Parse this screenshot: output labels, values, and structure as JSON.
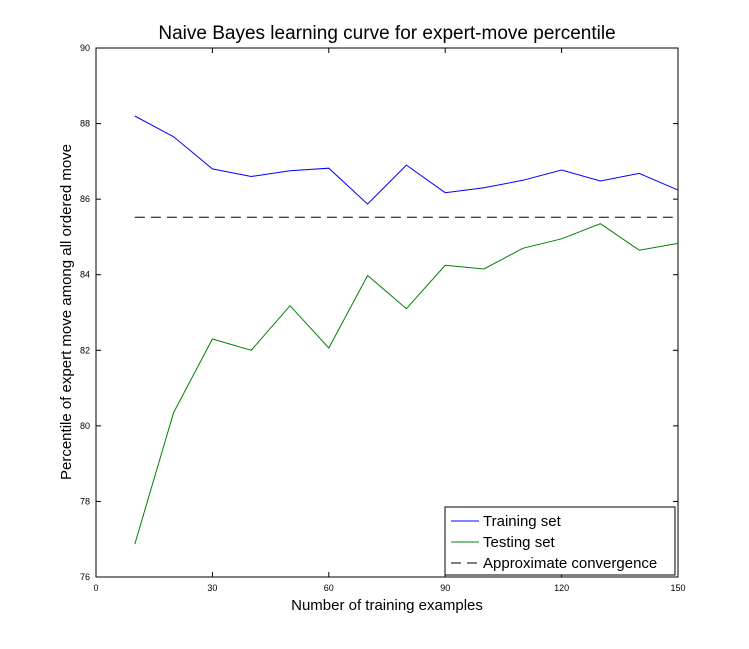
{
  "chart_data": {
    "type": "line",
    "title": "Naive Bayes learning curve for expert-move percentile",
    "xlabel": "Number of training examples",
    "ylabel": "Percentile of expert move among all ordered move",
    "xlim": [
      0,
      150
    ],
    "ylim": [
      76,
      90
    ],
    "xticks": [
      0,
      30,
      60,
      90,
      120,
      150
    ],
    "yticks": [
      76,
      78,
      80,
      82,
      84,
      86,
      88,
      90
    ],
    "grid": false,
    "legend_position": "bottom-right",
    "x": [
      10,
      20,
      30,
      40,
      50,
      60,
      70,
      80,
      90,
      100,
      110,
      120,
      130,
      140,
      150
    ],
    "series": [
      {
        "name": "Training set",
        "color": "#0000ff",
        "style": "solid",
        "values": [
          88.2,
          87.65,
          86.8,
          86.6,
          86.75,
          86.82,
          85.87,
          86.9,
          86.17,
          86.3,
          86.5,
          86.77,
          86.48,
          86.68,
          86.24
        ]
      },
      {
        "name": "Testing set",
        "color": "#008000",
        "style": "solid",
        "values": [
          76.87,
          80.35,
          82.3,
          82.0,
          83.18,
          82.06,
          83.98,
          83.1,
          84.25,
          84.15,
          84.7,
          84.95,
          85.35,
          84.65,
          84.83
        ]
      },
      {
        "name": "Approximate convergence",
        "color": "#000000",
        "style": "dashed",
        "x": [
          10,
          150
        ],
        "values": [
          85.52,
          85.52
        ]
      }
    ]
  }
}
